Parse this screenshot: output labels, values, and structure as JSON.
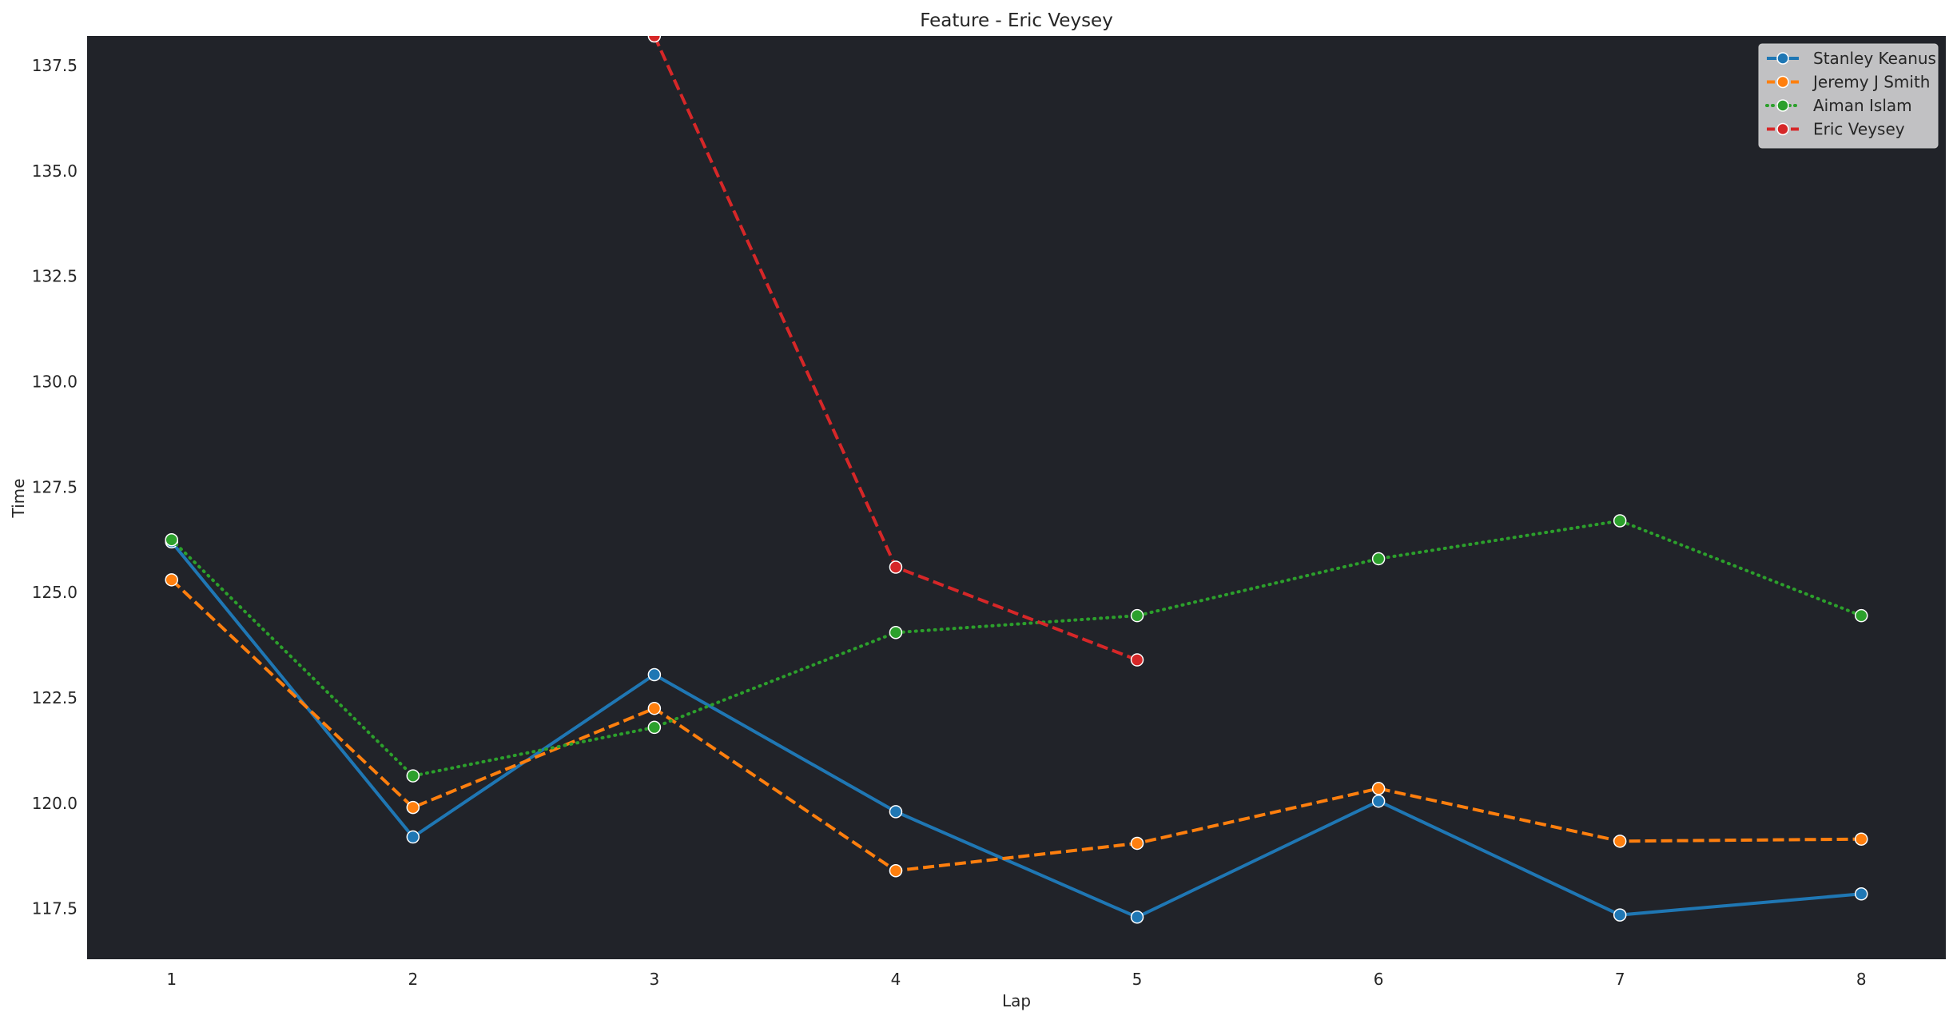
{
  "chart_data": {
    "type": "line",
    "title": "Feature - Eric Veysey",
    "xlabel": "Lap",
    "ylabel": "Time",
    "x": [
      1,
      2,
      3,
      4,
      5,
      6,
      7,
      8
    ],
    "xlim": [
      0.65,
      8.35
    ],
    "ylim": [
      116.3,
      138.2
    ],
    "yticks": [
      117.5,
      120.0,
      122.5,
      125.0,
      127.5,
      130.0,
      132.5,
      135.0,
      137.5
    ],
    "ytick_labels": [
      "117.5",
      "120.0",
      "122.5",
      "125.0",
      "127.5",
      "130.0",
      "132.5",
      "135.0",
      "137.5"
    ],
    "xtick_labels": [
      "1",
      "2",
      "3",
      "4",
      "5",
      "6",
      "7",
      "8"
    ],
    "grid": false,
    "plot_background": "#212329",
    "legend_position": "top-right",
    "series": [
      {
        "name": "Stanley Keanus",
        "color": "#1f77b4",
        "dash": "solid",
        "x": [
          1,
          2,
          3,
          4,
          5,
          6,
          7,
          8
        ],
        "values": [
          126.2,
          119.2,
          123.05,
          119.8,
          117.3,
          120.05,
          117.35,
          117.85
        ]
      },
      {
        "name": "Jeremy J Smith",
        "color": "#ff7f0e",
        "dash": "dashed",
        "x": [
          1,
          2,
          3,
          4,
          5,
          6,
          7,
          8
        ],
        "values": [
          125.3,
          119.9,
          122.25,
          118.4,
          119.05,
          120.35,
          119.1,
          119.15
        ]
      },
      {
        "name": "Aiman Islam",
        "color": "#2ca02c",
        "dash": "dotted",
        "x": [
          1,
          2,
          3,
          4,
          5,
          6,
          7,
          8
        ],
        "values": [
          126.25,
          120.65,
          121.8,
          124.05,
          124.45,
          125.8,
          126.7,
          124.45
        ]
      },
      {
        "name": "Eric Veysey",
        "color": "#d62728",
        "dash": "dashed",
        "x": [
          3,
          4,
          5
        ],
        "values": [
          138.2,
          125.6,
          123.4
        ]
      }
    ]
  }
}
